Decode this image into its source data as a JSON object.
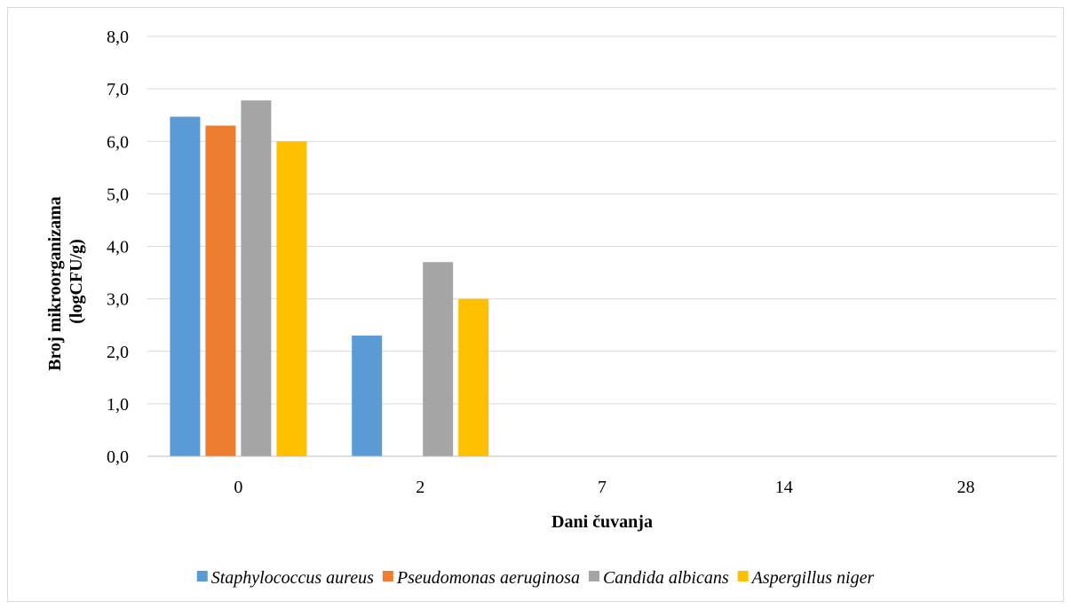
{
  "chart_data": {
    "type": "bar",
    "title": "",
    "xlabel": "Dani čuvanja",
    "ylabel_lines": [
      "Broj mikroorganizama",
      "(logCFU/g)"
    ],
    "categories": [
      "0",
      "2",
      "7",
      "14",
      "28"
    ],
    "ylim": [
      0,
      8
    ],
    "yticks": [
      "0,0",
      "1,0",
      "2,0",
      "3,0",
      "4,0",
      "5,0",
      "6,0",
      "7,0",
      "8,0"
    ],
    "grid": true,
    "legend_position": "bottom",
    "series": [
      {
        "name": "Staphylococcus aureus",
        "color": "#5b9bd5",
        "values": [
          6.47,
          2.3,
          0,
          0,
          0
        ]
      },
      {
        "name": "Pseudomonas aeruginosa",
        "color": "#ed7d31",
        "values": [
          6.3,
          0,
          0,
          0,
          0
        ]
      },
      {
        "name": "Candida albicans",
        "color": "#a5a5a5",
        "values": [
          6.78,
          3.7,
          0,
          0,
          0
        ]
      },
      {
        "name": "Aspergillus niger",
        "color": "#ffc000",
        "values": [
          6.0,
          3.0,
          0,
          0,
          0
        ]
      }
    ]
  }
}
